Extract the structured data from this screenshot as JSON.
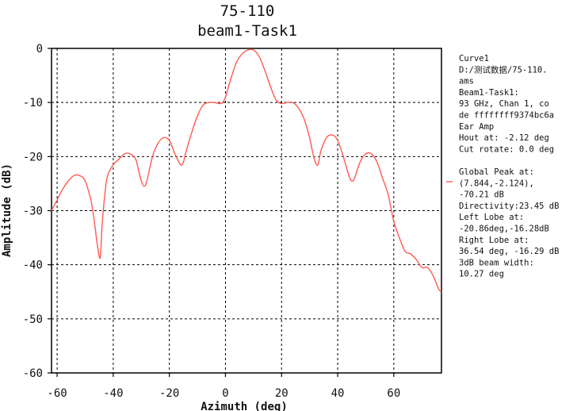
{
  "chart_data": {
    "type": "line",
    "title": "75-110",
    "subtitle": "beam1-Task1",
    "xlabel": "Azimuth (deg)",
    "ylabel": "Amplitude (dB)",
    "xlim": [
      -62,
      77
    ],
    "ylim": [
      -60,
      0
    ],
    "xticks": [
      -60,
      -40,
      -20,
      0,
      20,
      40,
      60
    ],
    "yticks": [
      0,
      -10,
      -20,
      -30,
      -40,
      -50,
      -60
    ],
    "grid": true,
    "legend_position": "right",
    "series": [
      {
        "color": "#ff5a50",
        "x": [
          -62,
          -60,
          -58,
          -56,
          -54,
          -52,
          -50,
          -48,
          -47,
          -46,
          -45,
          -44.5,
          -44,
          -43,
          -42,
          -40,
          -38,
          -36,
          -34,
          -32,
          -31,
          -30,
          -29,
          -28,
          -26,
          -24,
          -22,
          -20,
          -18,
          -16,
          -15,
          -14,
          -12,
          -10,
          -8,
          -6,
          -4,
          -2,
          -1,
          0,
          2,
          4,
          6,
          8,
          10,
          12,
          14,
          16,
          18,
          20,
          22,
          24,
          26,
          28,
          30,
          31,
          32,
          33,
          34,
          36,
          38,
          40,
          42,
          44,
          45,
          46,
          48,
          50,
          52,
          54,
          56,
          58,
          60,
          62,
          64,
          66,
          68,
          70,
          72,
          74,
          76,
          77
        ],
        "y": [
          -30,
          -28,
          -26,
          -24.5,
          -23.5,
          -23.5,
          -24.5,
          -28,
          -31,
          -35,
          -38.5,
          -38,
          -33,
          -27,
          -23.5,
          -21.5,
          -20.5,
          -19.5,
          -19.5,
          -20.5,
          -22.5,
          -24.5,
          -25.5,
          -24.5,
          -20,
          -17.5,
          -16.5,
          -17,
          -19.5,
          -21.5,
          -21,
          -19,
          -15.5,
          -12.5,
          -10.5,
          -10,
          -10,
          -10.2,
          -10,
          -9,
          -5.5,
          -2.5,
          -1,
          -0.3,
          -0.3,
          -1.5,
          -4,
          -7,
          -9.5,
          -10.2,
          -10,
          -10,
          -11,
          -13,
          -16.5,
          -19,
          -21,
          -21.5,
          -19,
          -16.5,
          -16,
          -17,
          -20,
          -23.5,
          -24.5,
          -24,
          -21,
          -19.5,
          -19.5,
          -21,
          -24,
          -27,
          -32,
          -35,
          -37.5,
          -38,
          -39,
          -40.5,
          -40.5,
          -42,
          -44.5,
          -45
        ]
      }
    ]
  },
  "legend": {
    "line_color": "#ff5a50",
    "lines": [
      "Curve1",
      "D:/测试数据/75-110.",
      "ams",
      "Beam1-Task1:",
      "93 GHz, Chan 1,   co",
      "de ffffffff9374bc6a",
      "Ear Amp",
      "Hout at: -2.12 deg",
      "Cut rotate: 0.0 deg",
      "",
      "Global Peak at:",
      "(7.844,-2.124),",
      "-70.21 dB",
      "Directivity:23.45 dB",
      "Left Lobe at:",
      "-20.86deg,-16.28dB",
      "Right Lobe at:",
      "36.54 deg, -16.29 dB",
      "3dB beam width:",
      "10.27 deg"
    ]
  }
}
